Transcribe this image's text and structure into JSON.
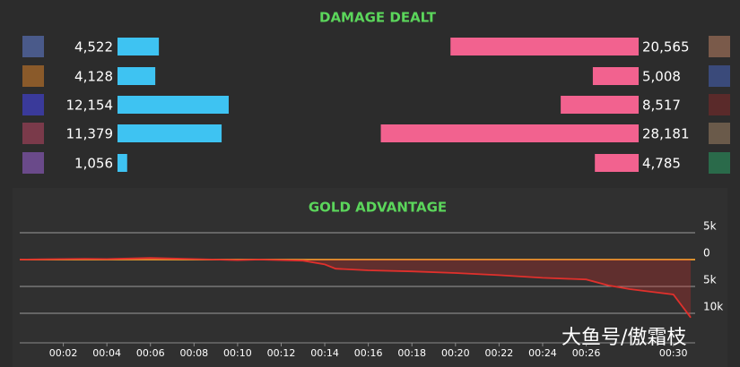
{
  "chart_data": [
    {
      "type": "paired-bar",
      "title": "DAMAGE DEALT",
      "series": [
        {
          "color": "#3ec3f2",
          "values": [
            4522,
            4128,
            12154,
            11379,
            1056
          ],
          "value_labels": [
            "4,522",
            "4,128",
            "12,154",
            "11,379",
            "1,056"
          ]
        },
        {
          "color": "#f2628f",
          "values": [
            20565,
            5008,
            8517,
            28181,
            4785
          ],
          "value_labels": [
            "20,565",
            "5,008",
            "8,517",
            "28,181",
            "4,785"
          ]
        }
      ]
    },
    {
      "type": "area",
      "title": "GOLD ADVANTAGE",
      "color": "#e0302c",
      "zero_line_color": "#d9902e",
      "grid": true,
      "x": [
        0,
        1,
        2,
        3,
        4,
        5,
        6,
        7,
        8,
        9,
        10,
        11,
        12,
        13,
        14,
        14.5,
        16,
        18,
        20,
        22,
        24,
        26,
        27,
        28,
        29,
        30,
        30.5,
        30.8
      ],
      "values": [
        0,
        50,
        100,
        150,
        100,
        200,
        300,
        200,
        100,
        0,
        -100,
        0,
        -100,
        -200,
        -900,
        -1700,
        -2000,
        -2200,
        -2500,
        -2900,
        -3400,
        -3700,
        -4800,
        -5500,
        -6000,
        -6500,
        -9200,
        -10800
      ],
      "xlim": [
        0,
        31
      ],
      "xticks": [
        {
          "value": 2,
          "label": "00:02"
        },
        {
          "value": 4,
          "label": "00:04"
        },
        {
          "value": 6,
          "label": "00:06"
        },
        {
          "value": 8,
          "label": "00:08"
        },
        {
          "value": 10,
          "label": "00:10"
        },
        {
          "value": 12,
          "label": "00:12"
        },
        {
          "value": 14,
          "label": "00:14"
        },
        {
          "value": 16,
          "label": "00:16"
        },
        {
          "value": 18,
          "label": "00:18"
        },
        {
          "value": 20,
          "label": "00:20"
        },
        {
          "value": 22,
          "label": "00:22"
        },
        {
          "value": 24,
          "label": "00:24"
        },
        {
          "value": 26,
          "label": "00:26"
        },
        {
          "value": 30,
          "label": "00:30"
        }
      ],
      "ylim": [
        -15000,
        7500
      ],
      "yticks": [
        {
          "value": 5000,
          "label": "5k"
        },
        0,
        {
          "value": -5000,
          "label": "5k"
        },
        {
          "value": -10000,
          "label": "10k"
        }
      ]
    }
  ],
  "watermark": "大鱼号/傲霜枝"
}
